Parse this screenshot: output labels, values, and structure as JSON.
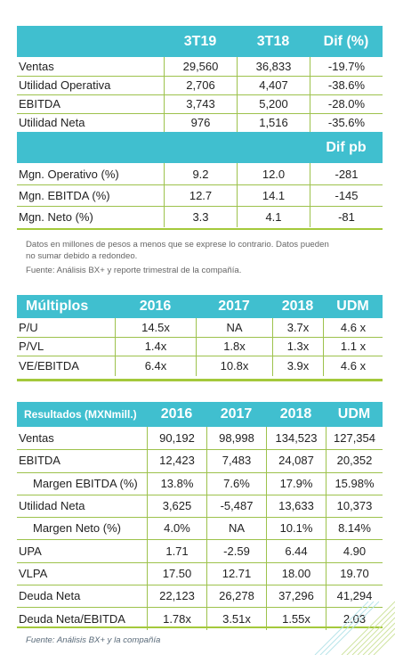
{
  "table1": {
    "headers": [
      "",
      "3T19",
      "3T18",
      "Dif (%)"
    ],
    "rows": [
      [
        "Ventas",
        "29,560",
        "36,833",
        "-19.7%"
      ],
      [
        "Utilidad Operativa",
        "2,706",
        "4,407",
        "-38.6%"
      ],
      [
        "EBITDA",
        "3,743",
        "5,200",
        "-28.0%"
      ],
      [
        "Utilidad Neta",
        "976",
        "1,516",
        "-35.6%"
      ]
    ],
    "subheader": "Dif pb",
    "rows2": [
      [
        "Mgn. Operativo (%)",
        "9.2",
        "12.0",
        "-281"
      ],
      [
        "Mgn. EBITDA (%)",
        "12.7",
        "14.1",
        "-145"
      ],
      [
        "Mgn. Neto (%)",
        "3.3",
        "4.1",
        "-81"
      ]
    ]
  },
  "note": {
    "line1": "Datos en millones de pesos a menos que se exprese lo contrario. Datos pueden",
    "line2": "no sumar debido a redondeo.",
    "line3": "Fuente: Análisis BX+ y reporte trimestral de la compañía."
  },
  "table2": {
    "headers": [
      "Múltiplos",
      "2016",
      "2017",
      "2018",
      "UDM"
    ],
    "rows": [
      [
        "P/U",
        "14.5x",
        "NA",
        "3.7x",
        "4.6 x"
      ],
      [
        "P/VL",
        "1.4x",
        "1.8x",
        "1.3x",
        "1.1 x"
      ],
      [
        "VE/EBITDA",
        "6.4x",
        "10.8x",
        "3.9x",
        "4.6 x"
      ]
    ]
  },
  "table3": {
    "headers": [
      "Resultados (MXNmill.)",
      "2016",
      "2017",
      "2018",
      "UDM"
    ],
    "rows": [
      [
        "Ventas",
        "90,192",
        "98,998",
        "134,523",
        "127,354"
      ],
      [
        "EBITDA",
        "12,423",
        "7,483",
        "24,087",
        "20,352"
      ],
      [
        "Margen EBITDA (%)",
        "13.8%",
        "7.6%",
        "17.9%",
        "15.98%"
      ],
      [
        "Utilidad Neta",
        "3,625",
        "-5,487",
        "13,633",
        "10,373"
      ],
      [
        "Margen Neto (%)",
        "4.0%",
        "NA",
        "10.1%",
        "8.14%"
      ],
      [
        "UPA",
        "1.71",
        "-2.59",
        "6.44",
        "4.90"
      ],
      [
        "VLPA",
        "17.50",
        "12.71",
        "18.00",
        "19.70"
      ],
      [
        "Deuda Neta",
        "22,123",
        "26,278",
        "37,296",
        "41,294"
      ],
      [
        "Deuda Neta/EBITDA",
        "1.78x",
        "3.51x",
        "1.55x",
        "2.03"
      ]
    ]
  },
  "source": "Fuente: Análisis BX+ y la compañía",
  "colors": {
    "header": "#40bfcf",
    "rule": "#a4c93b",
    "decoration": "#cfe3a0"
  }
}
